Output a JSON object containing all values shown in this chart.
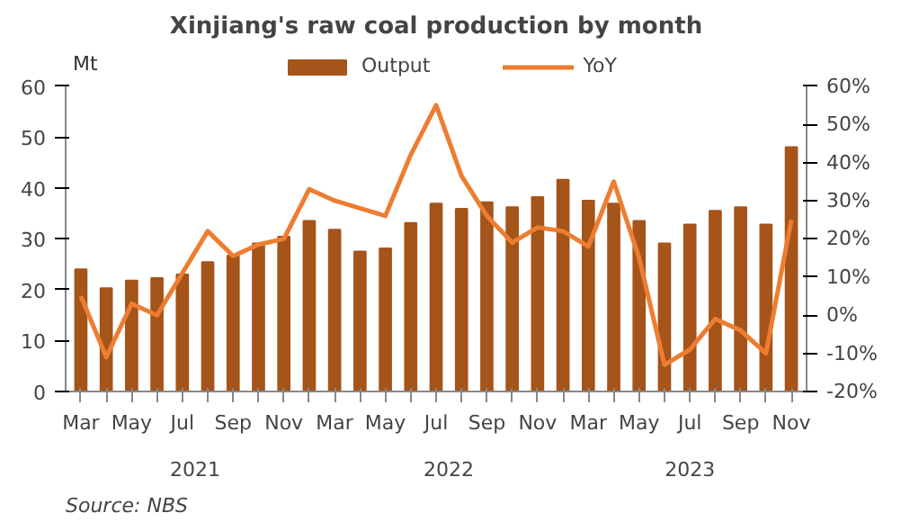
{
  "chart_data": {
    "type": "bar",
    "title": "Xinjiang's raw coal production by month",
    "ylabel": "Mt",
    "categories": [
      "Mar",
      null,
      "May",
      null,
      "Jul",
      null,
      "Sep",
      null,
      "Nov",
      null,
      "Mar",
      null,
      "May",
      null,
      "Jul",
      null,
      "Sep",
      null,
      "Nov",
      null,
      "Mar",
      null,
      "May",
      null,
      "Jul",
      null,
      "Sep",
      null,
      "Nov"
    ],
    "series": [
      {
        "name": "Output",
        "color": "#a5541a",
        "values": [
          24.0,
          20.3,
          21.8,
          22.3,
          23.0,
          25.4,
          26.7,
          29.1,
          30.4,
          33.5,
          31.8,
          27.5,
          28.1,
          33.1,
          36.9,
          35.9,
          37.2,
          36.2,
          38.2,
          41.6,
          37.5,
          36.9,
          33.5,
          29.1,
          32.8,
          35.5,
          36.2,
          32.8,
          48.0
        ]
      },
      {
        "name": "YoY",
        "type": "line",
        "axis": "y2",
        "color": "#ed7d31",
        "values": [
          5,
          -11,
          3,
          0,
          11,
          22,
          15.5,
          18.5,
          20,
          33,
          30,
          28,
          26,
          42,
          55,
          36.5,
          26,
          19,
          23,
          22,
          18,
          35,
          15,
          -13,
          -9,
          -1,
          -4,
          -10,
          25
        ]
      }
    ],
    "ylim": [
      0,
      60
    ],
    "yticks": [
      0,
      10,
      20,
      30,
      40,
      50,
      60
    ],
    "y2lim": [
      -20,
      60
    ],
    "y2ticks": [
      {
        "value": -20,
        "label": "-20%"
      },
      {
        "value": -10,
        "label": "-10%"
      },
      {
        "value": 0,
        "label": "0%"
      },
      {
        "value": 10,
        "label": "10%"
      },
      {
        "value": 20,
        "label": "20%"
      },
      {
        "value": 30,
        "label": "30%"
      },
      {
        "value": 40,
        "label": "40%"
      },
      {
        "value": 50,
        "label": "50%"
      },
      {
        "value": 60,
        "label": "60%"
      }
    ],
    "legend": "top",
    "grid": false,
    "line_style": "solid",
    "marker": "none",
    "annotations": [
      "2021",
      "2022",
      "2023",
      "Source: NBS"
    ]
  }
}
